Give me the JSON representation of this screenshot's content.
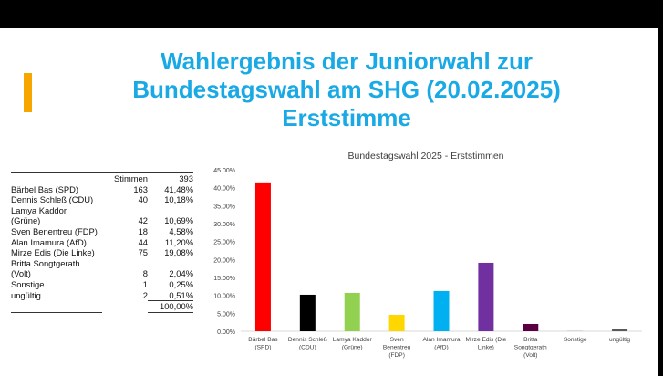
{
  "slide": {
    "title_lines": [
      "Wahlergebnis der Juniorwahl zur",
      "Bundestagswahl am SHG (20.02.2025)",
      "Erststimme"
    ],
    "colors": {
      "title": "#19a9e5",
      "accent": "#f7a600"
    }
  },
  "table": {
    "header": {
      "label": "Stimmen",
      "value": "393"
    },
    "rows": [
      {
        "name": "Bärbel Bas (SPD)",
        "votes": "163",
        "percent": "41,48%"
      },
      {
        "name": "Dennis Schleß (CDU)",
        "votes": "40",
        "percent": "10,18%"
      },
      {
        "name": "Lamya Kaddor",
        "votes": "",
        "percent": ""
      },
      {
        "name": "(Grüne)",
        "votes": "42",
        "percent": "10,69%"
      },
      {
        "name": "Sven Benentreu (FDP)",
        "votes": "18",
        "percent": "4,58%"
      },
      {
        "name": "Alan Imamura (AfD)",
        "votes": "44",
        "percent": "11,20%"
      },
      {
        "name": "Mirze Edis (Die Linke)",
        "votes": "75",
        "percent": "19,08%"
      },
      {
        "name": "Britta Songtgerath",
        "votes": "",
        "percent": ""
      },
      {
        "name": "(Volt)",
        "votes": "8",
        "percent": "2,04%"
      },
      {
        "name": "Sonstige",
        "votes": "1",
        "percent": "0,25%"
      },
      {
        "name": "ungültig",
        "votes": "2",
        "percent": "0,51%"
      }
    ],
    "total": "100,00%"
  },
  "chart_data": {
    "type": "bar",
    "title": "Bundestagswahl 2025 - Erststimmen",
    "xlabel": "",
    "ylabel": "",
    "ylim": [
      0,
      45
    ],
    "y_ticks": [
      "0.00%",
      "5.00%",
      "10.00%",
      "15.00%",
      "20.00%",
      "25.00%",
      "30.00%",
      "35.00%",
      "40.00%",
      "45.00%"
    ],
    "grid": false,
    "legend": "none",
    "categories": [
      [
        "Bärbel Bas",
        "(SPD)"
      ],
      [
        "Dennis Schleß",
        "(CDU)"
      ],
      [
        "Lamya Kaddor",
        "(Grüne)"
      ],
      [
        "Sven",
        "Benentreu",
        "(FDP)"
      ],
      [
        "Alan Imamura",
        "(AfD)"
      ],
      [
        "Mirze Edis (Die",
        "Linke)"
      ],
      [
        "Britta",
        "Songtgerath",
        "(Volt)"
      ],
      [
        "Sonstige"
      ],
      [
        "ungültig"
      ]
    ],
    "values": [
      41.48,
      10.18,
      10.69,
      4.58,
      11.2,
      19.08,
      2.04,
      0.25,
      0.51
    ],
    "colors": [
      "#ff0000",
      "#000000",
      "#92d050",
      "#ffd700",
      "#00b0f0",
      "#7030a0",
      "#5a0040",
      "#d9d9d9",
      "#595959"
    ]
  }
}
